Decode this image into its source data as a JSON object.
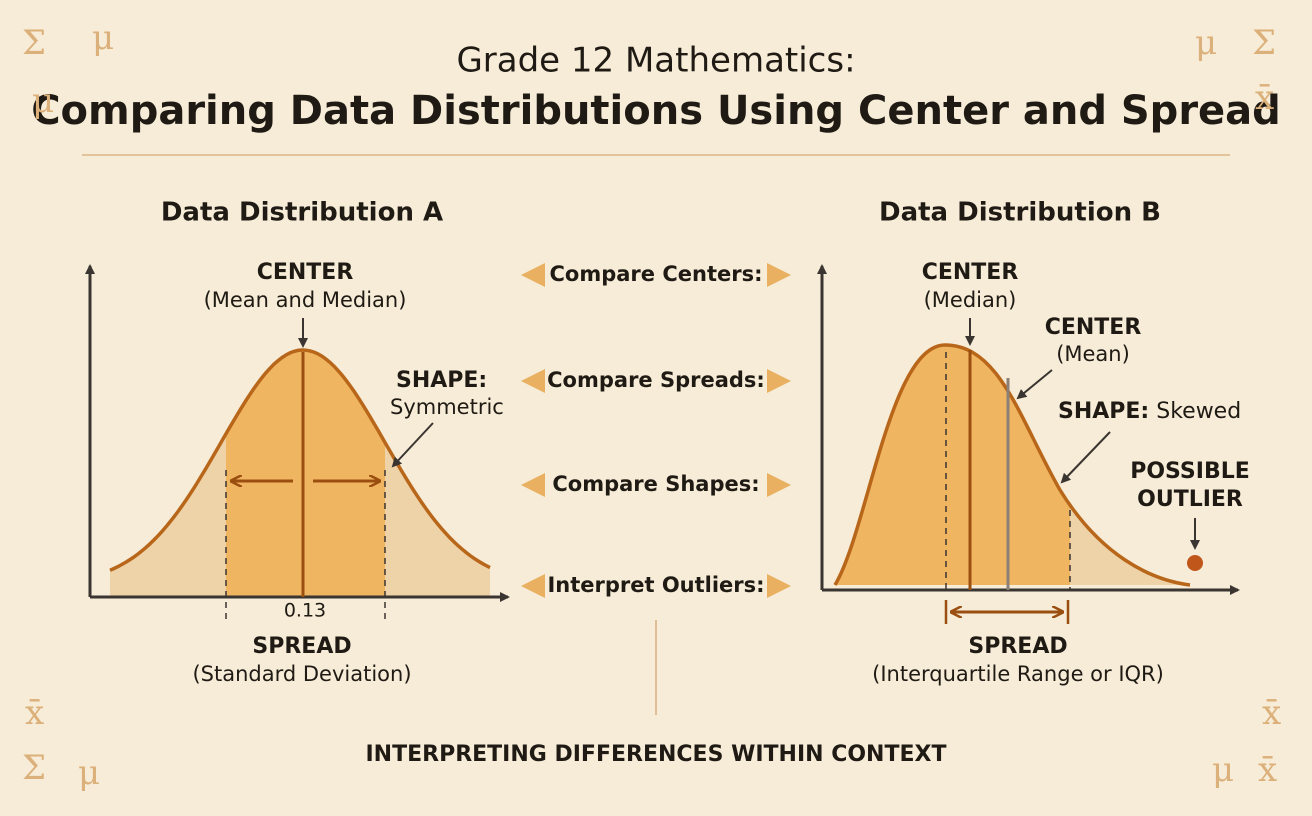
{
  "header": {
    "subtitle": "Grade 12 Mathematics:",
    "title": "Comparing Data Distributions Using Center and Spread"
  },
  "panel_a": {
    "title": "Data Distribution A",
    "center": {
      "label": "CENTER",
      "detail": "(Mean and Median)"
    },
    "shape": {
      "label": "SHAPE:",
      "detail": "Symmetric"
    },
    "axis_label": "0.13",
    "spread": {
      "label": "SPREAD",
      "detail": "(Standard Deviation)"
    }
  },
  "comparisons": [
    "Compare Centers:",
    "Compare Spreads:",
    "Compare Shapes:",
    "Interpret Outliers:"
  ],
  "panel_b": {
    "title": "Data Distribution B",
    "median": {
      "label": "CENTER",
      "detail": "(Median)"
    },
    "mean": {
      "label": "CENTER",
      "detail": "(Mean)"
    },
    "shape": {
      "label": "SHAPE:",
      "detail": "Skewed"
    },
    "outlier": [
      "POSSIBLE",
      "OUTLIER"
    ],
    "spread": {
      "label": "SPREAD",
      "detail": "(Interquartile Range or IQR)"
    }
  },
  "footer": "INTERPRETING DIFFERENCES WITHIN CONTEXT",
  "symbols": {
    "top_left": [
      "Σ",
      "μ",
      "μ"
    ],
    "top_right": [
      "μ",
      "Σ",
      "x̄"
    ],
    "bottom_left": [
      "x̄",
      "Σ",
      "μ"
    ],
    "bottom_right": [
      "x̄",
      "μ",
      "x̄"
    ]
  }
}
